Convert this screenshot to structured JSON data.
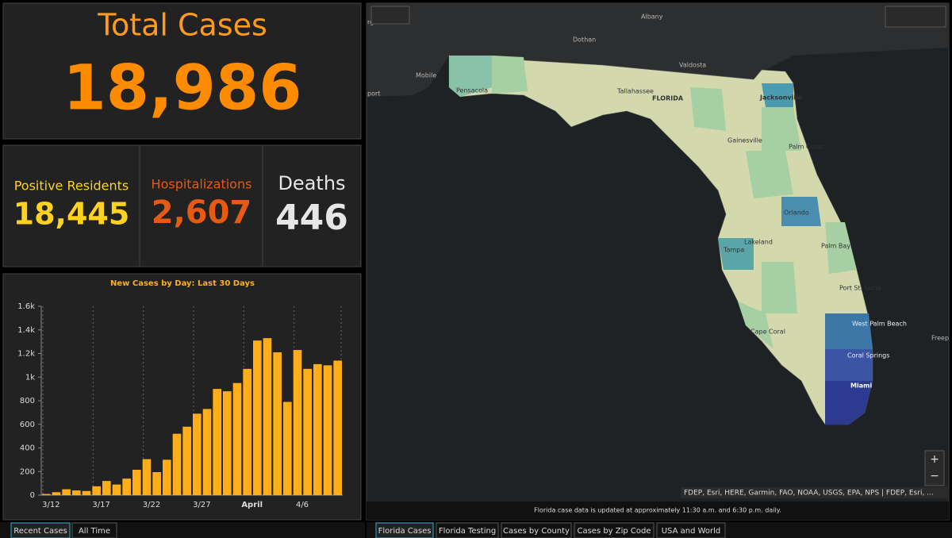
{
  "total": {
    "title": "Total Cases",
    "value": "18,986"
  },
  "stats": [
    {
      "label": "Positive Residents",
      "value": "18,445"
    },
    {
      "label": "Hospitalizations",
      "value": "2,607"
    },
    {
      "label": "Deaths",
      "value": "446"
    }
  ],
  "chart": {
    "type": "bar",
    "title": "New Cases by Day: Last 30 Days",
    "color": "#ffae1a",
    "categories": [
      "3/12",
      null,
      null,
      null,
      null,
      "3/17",
      null,
      null,
      null,
      null,
      "3/22",
      null,
      null,
      null,
      null,
      "3/27",
      null,
      null,
      null,
      null,
      "April",
      null,
      null,
      null,
      null,
      "4/6",
      null,
      null,
      null,
      null
    ],
    "values": [
      10,
      25,
      50,
      40,
      35,
      75,
      120,
      90,
      140,
      215,
      305,
      195,
      300,
      520,
      580,
      690,
      730,
      900,
      880,
      950,
      1070,
      1310,
      1330,
      1210,
      790,
      1230,
      1070,
      1110,
      1100,
      1140
    ],
    "ylim": [
      0,
      1600
    ],
    "yticks": [
      0,
      200,
      400,
      600,
      800,
      {
        "value": 1000,
        "label": "1k"
      },
      {
        "value": 1200,
        "label": "1.2k"
      },
      {
        "value": 1400,
        "label": "1.4k"
      },
      {
        "value": 1600,
        "label": "1.6k"
      }
    ]
  },
  "left_tabs": [
    "Recent Cases",
    "All Time"
  ],
  "map": {
    "labels": [
      "Albany",
      "Dothan",
      "Valdosta",
      "Mobile",
      "Pensacola",
      "Tallahassee",
      "FLORIDA",
      "Jacksonville",
      "Gainesville",
      "Palm Coast",
      "Orlando",
      "Lakeland",
      "Tampa",
      "Palm Bay",
      "Port St. Lucie",
      "West Palm Beach",
      "Coral Springs",
      "Miami",
      "Cape Coral",
      "Freep",
      "port",
      "rg"
    ],
    "attribution": "FDEP, Esri, HERE, Garmin, FAO, NOAA, USGS, EPA, NPS | FDEP, Esri, ...",
    "note": "Florida case data is updated at approximately 11:30 a.m. and 6:30 p.m. daily."
  },
  "map_tabs": [
    "Florida Cases",
    "Florida Testing",
    "Cases by County",
    "Cases by Zip Code",
    "USA and World"
  ]
}
